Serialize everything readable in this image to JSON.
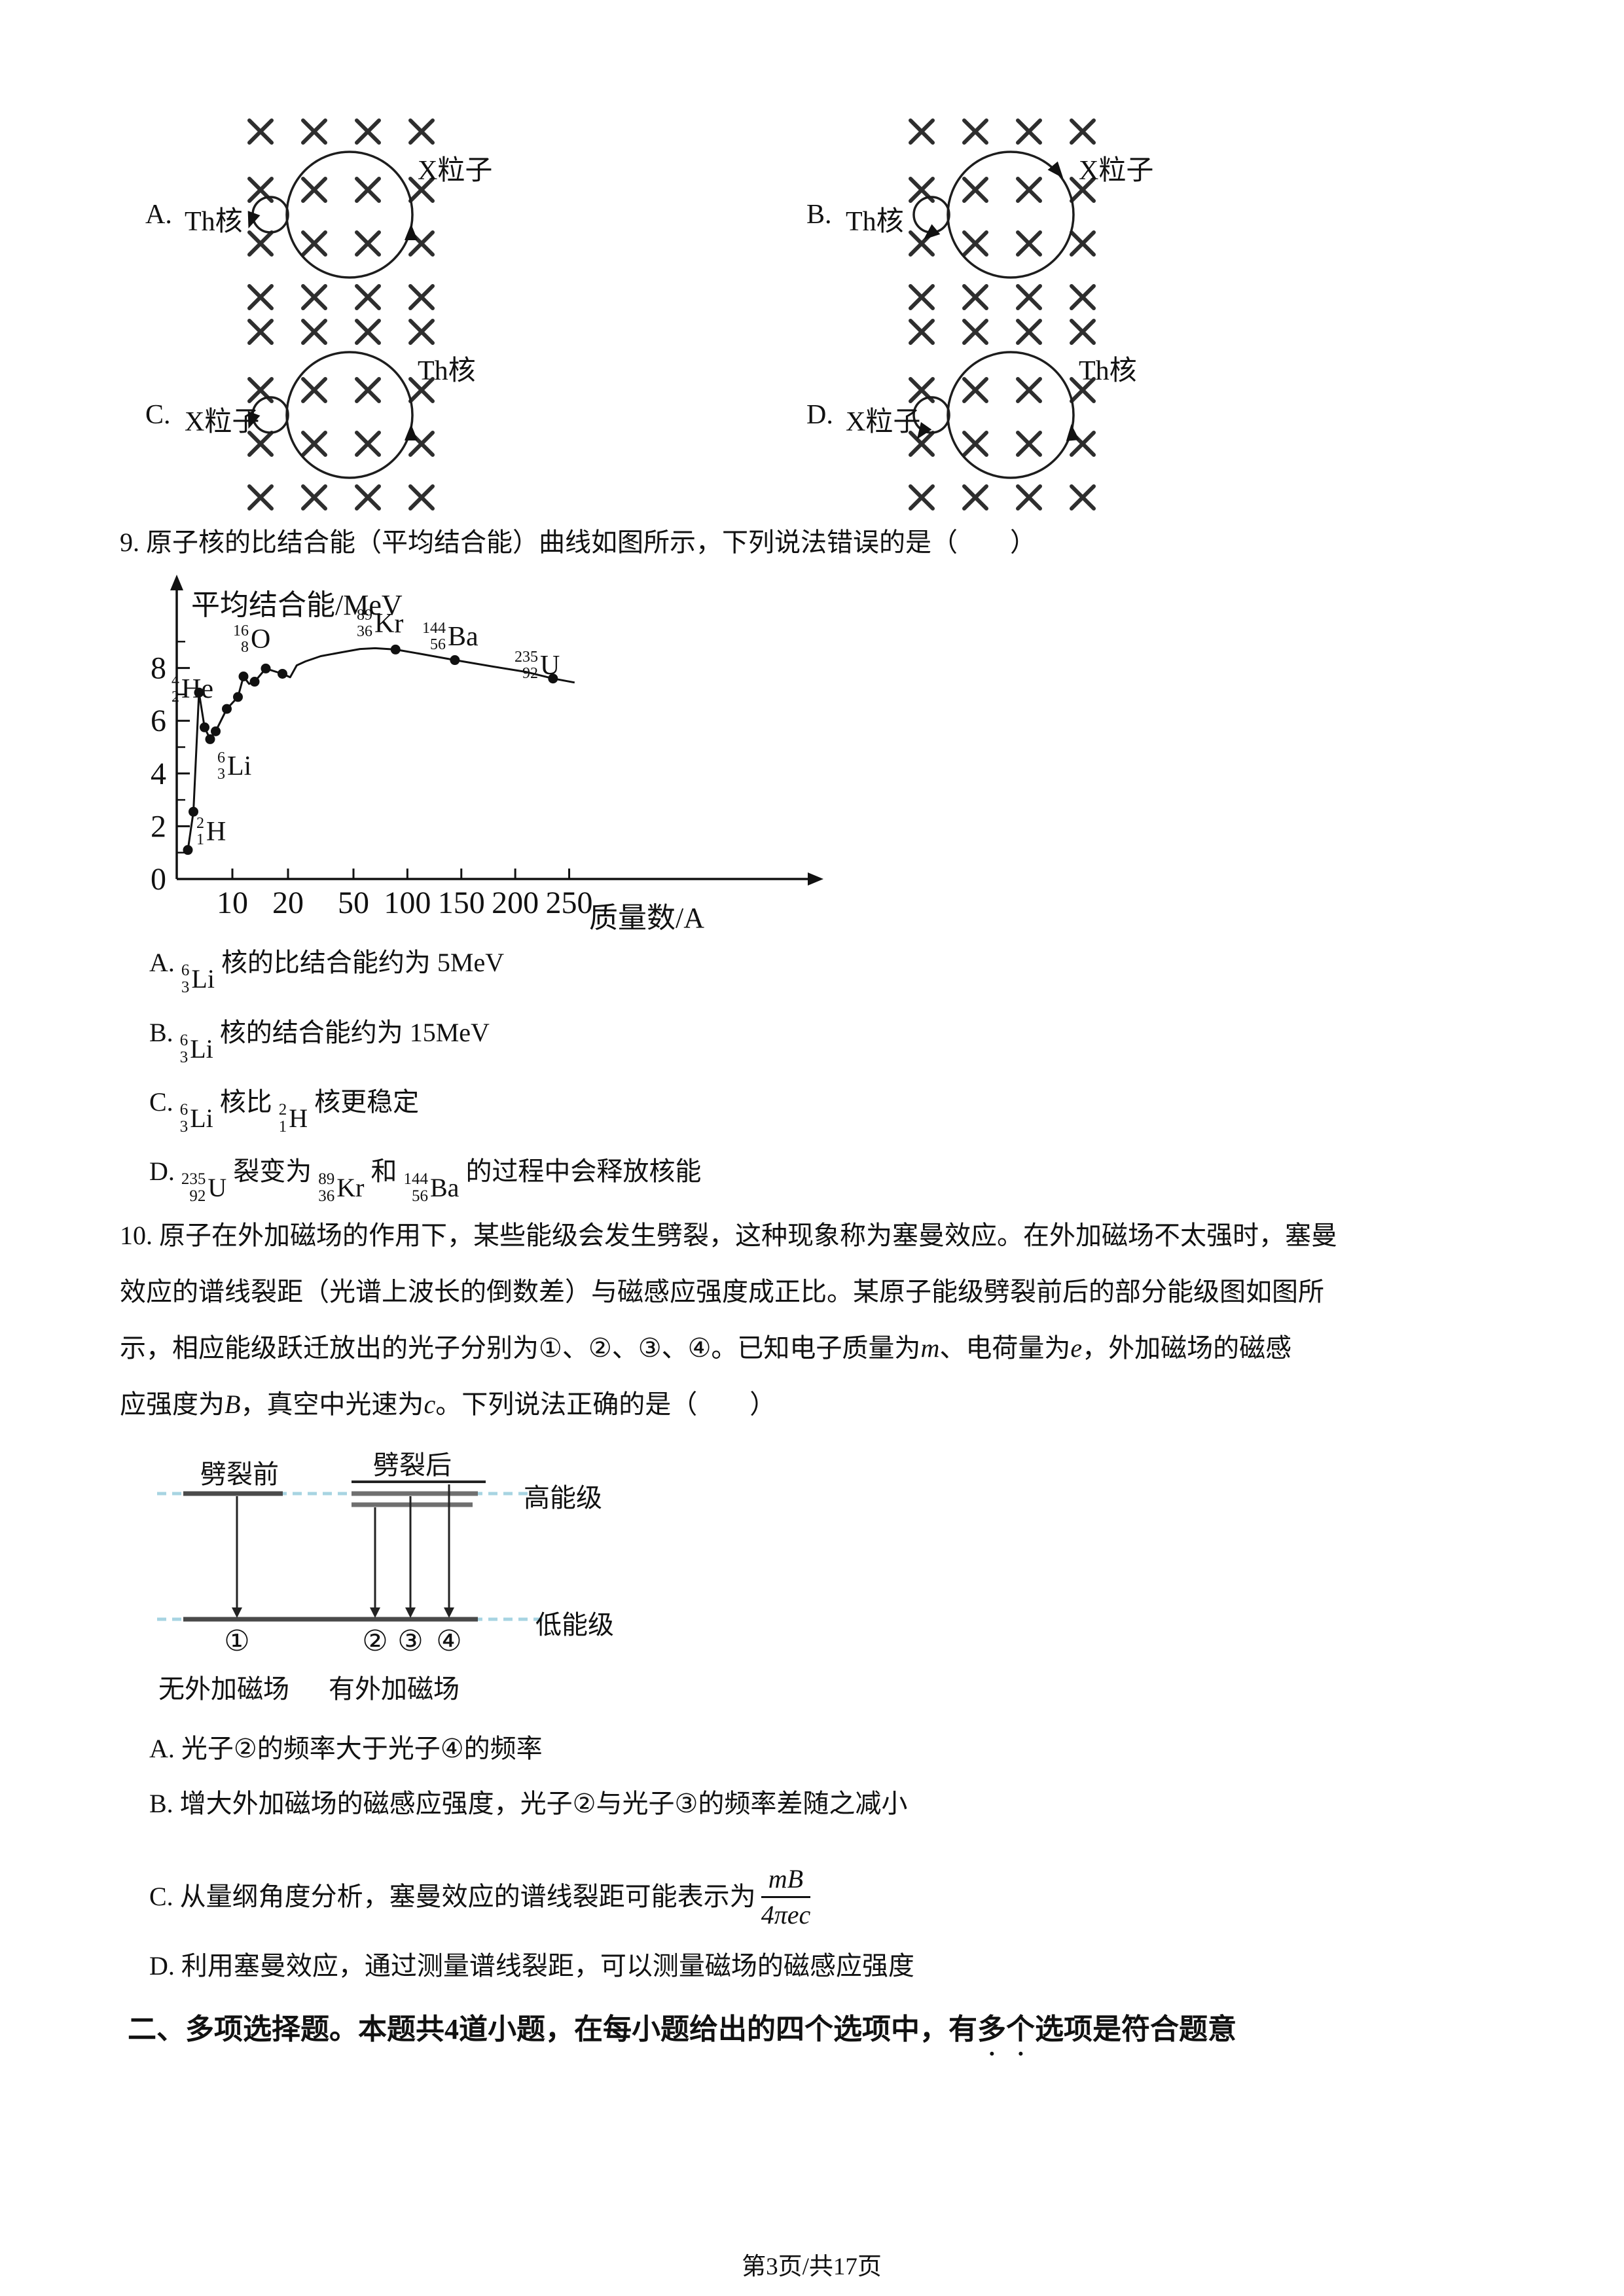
{
  "page": {
    "footer": "第3页/共17页"
  },
  "diagrams": {
    "items": [
      {
        "letter": "A.",
        "left_label": "Th核",
        "right_label": "X粒子",
        "big_arrow": [
          458,
          228,
          0
        ],
        "small_arrow": [
          215,
          204,
          200
        ]
      },
      {
        "letter": "B.",
        "left_label": "Th核",
        "right_label": "X粒子",
        "big_arrow": [
          434,
          130,
          140
        ],
        "small_arrow": [
          243,
          226,
          230
        ]
      },
      {
        "letter": "C.",
        "left_label": "X粒子",
        "right_label": "Th核",
        "big_arrow": [
          458,
          228,
          0
        ],
        "small_arrow": [
          215,
          204,
          200
        ]
      },
      {
        "letter": "D.",
        "left_label": "X粒子",
        "right_label": "Th核",
        "big_arrow": [
          458,
          228,
          355
        ],
        "small_arrow": [
          230,
          222,
          215
        ]
      }
    ]
  },
  "q9": {
    "stem": "9. 原子核的比结合能（平均结合能）曲线如图所示，下列说法错误的是（　　）",
    "options": [
      [
        {
          "t": "A. "
        },
        {
          "nuc": [
            "6",
            "3",
            "Li"
          ]
        },
        {
          "t": " 核的比结合能约为 5MeV"
        }
      ],
      [
        {
          "t": "B. "
        },
        {
          "nuc": [
            "6",
            "3",
            "Li"
          ]
        },
        {
          "t": " 核的结合能约为 15MeV"
        }
      ],
      [
        {
          "t": "C. "
        },
        {
          "nuc": [
            "6",
            "3",
            "Li"
          ]
        },
        {
          "t": " 核比 "
        },
        {
          "nuc": [
            "2",
            "1",
            "H"
          ]
        },
        {
          "t": " 核更稳定"
        }
      ],
      [
        {
          "t": "D. "
        },
        {
          "nuc": [
            "235",
            "92",
            "U"
          ]
        },
        {
          "t": " 裂变为 "
        },
        {
          "nuc": [
            "89",
            "36",
            "Kr"
          ]
        },
        {
          "t": " 和 "
        },
        {
          "nuc": [
            "144",
            "56",
            "Ba"
          ]
        },
        {
          "t": " 的过程中会释放核能"
        }
      ]
    ]
  },
  "chart_data": {
    "type": "line",
    "title": "",
    "xlabel": "质量数/A",
    "ylabel": "平均结合能/MeV",
    "xlim": [
      0,
      270
    ],
    "ylim": [
      0,
      9.5
    ],
    "x_ticks": [
      10,
      20,
      50,
      100,
      150,
      200,
      250
    ],
    "y_ticks": [
      0,
      2,
      4,
      6,
      8
    ],
    "y_minor_ticks": [
      1,
      3,
      5,
      7,
      9
    ],
    "x_scale_piecewise": {
      "A": [
        0,
        20,
        50,
        260
      ],
      "px": [
        0,
        170,
        270,
        616
      ]
    },
    "points": [
      [
        2,
        1.1
      ],
      [
        3,
        2.55
      ],
      [
        4,
        7.07
      ],
      [
        5,
        5.75
      ],
      [
        6,
        5.3
      ],
      [
        7,
        5.6
      ],
      [
        9,
        6.45
      ],
      [
        11,
        6.9
      ],
      [
        12,
        7.68
      ],
      [
        13,
        7.4
      ],
      [
        14,
        7.48
      ],
      [
        16,
        7.98
      ],
      [
        19,
        7.78
      ],
      [
        21,
        7.65
      ],
      [
        24,
        8.1
      ],
      [
        28,
        8.25
      ],
      [
        35,
        8.45
      ],
      [
        45,
        8.6
      ],
      [
        56,
        8.72
      ],
      [
        70,
        8.75
      ],
      [
        89,
        8.7
      ],
      [
        110,
        8.55
      ],
      [
        144,
        8.3
      ],
      [
        180,
        8.05
      ],
      [
        210,
        7.85
      ],
      [
        235,
        7.6
      ],
      [
        255,
        7.45
      ]
    ],
    "dots": [
      [
        2,
        1.1
      ],
      [
        3,
        2.55
      ],
      [
        4,
        7.07
      ],
      [
        5,
        5.75
      ],
      [
        6,
        5.3
      ],
      [
        7,
        5.6
      ],
      [
        9,
        6.45
      ],
      [
        11,
        6.9
      ],
      [
        12,
        7.68
      ],
      [
        14,
        7.48
      ],
      [
        16,
        7.98
      ],
      [
        19,
        7.78
      ],
      [
        89,
        8.7
      ],
      [
        144,
        8.3
      ],
      [
        235,
        7.6
      ]
    ],
    "labeled_nuclides": [
      {
        "A": "2",
        "Z": "1",
        "sym": "H",
        "lx": 300,
        "ly": 1246
      },
      {
        "A": "4",
        "Z": "2",
        "sym": "He",
        "lx": 262,
        "ly": 1028
      },
      {
        "A": "6",
        "Z": "3",
        "sym": "Li",
        "lx": 332,
        "ly": 1146
      },
      {
        "A": "16",
        "Z": "8",
        "sym": "O",
        "lx": 356,
        "ly": 952
      },
      {
        "A": "89",
        "Z": "36",
        "sym": "Kr",
        "lx": 545,
        "ly": 928
      },
      {
        "A": "144",
        "Z": "56",
        "sym": "Ba",
        "lx": 645,
        "ly": 948
      },
      {
        "A": "235",
        "Z": "92",
        "sym": "U",
        "lx": 786,
        "ly": 992
      }
    ]
  },
  "q10": {
    "stem_lines": [
      [
        {
          "t": "10. 原子在外加磁场的作用下，某些能级会发生劈裂，这种现象称为塞曼效应。在外加磁场不太强时，塞曼"
        }
      ],
      [
        {
          "t": "效应的谱线裂距（光谱上波长的倒数差）与磁感应强度成正比。某原子能级劈裂前后的部分能级图如图所"
        }
      ],
      [
        {
          "t": "示，相应能级跃迁放出的光子分别为①、②、③、④。已知电子质量为"
        },
        {
          "it": "m"
        },
        {
          "t": "、电荷量为"
        },
        {
          "it": "e"
        },
        {
          "t": "，外加磁场的磁感"
        }
      ],
      [
        {
          "t": "应强度为"
        },
        {
          "it": "B"
        },
        {
          "t": "，真空中光速为"
        },
        {
          "it": "c"
        },
        {
          "t": "。下列说法正确的是（　　）"
        }
      ]
    ],
    "options": [
      [
        {
          "t": "A. 光子②的频率大于光子④的频率"
        }
      ],
      [
        {
          "t": "B. 增大外加磁场的磁感应强度，光子②与光子③的频率差随之减小"
        }
      ],
      [
        {
          "t": "C. 从量纲角度分析，塞曼效应的谱线裂距可能表示为"
        },
        {
          "frac": {
            "num": "mB",
            "den": "4πec"
          }
        }
      ],
      [
        {
          "t": "D. 利用塞曼效应，通过测量谱线裂距，可以测量磁场的磁感应强度"
        }
      ]
    ]
  },
  "q10_diagram": {
    "before": "劈裂前",
    "after": "劈裂后",
    "high": "高能级",
    "low": "低能级",
    "nums": [
      "①",
      "②",
      "③",
      "④"
    ],
    "no_field": "无外加磁场",
    "with_field": "有外加磁场",
    "dash_color": "#a7d4e2"
  },
  "section2": {
    "heading": [
      {
        "t": "二、多项选择题。本题共4道小题，在每小题给出的四个选项中，有"
      },
      {
        "em": "多个"
      },
      {
        "t": "选项是符合题意"
      }
    ]
  }
}
